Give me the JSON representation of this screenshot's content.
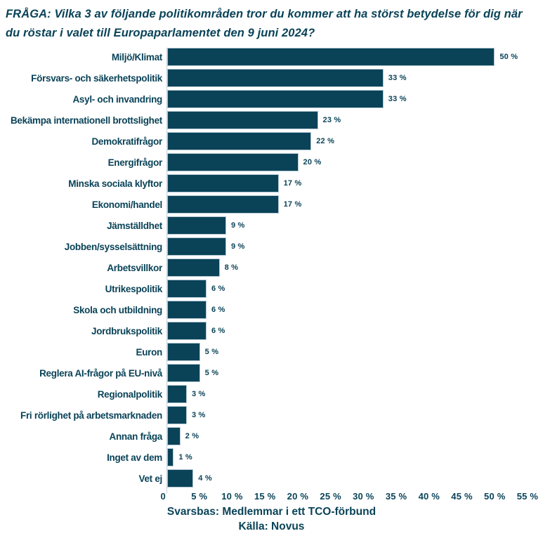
{
  "page": {
    "background": "#ffffff",
    "text_color": "#0A4358",
    "accent_color": "#0A4358",
    "bar_border_color": "#b3c8d3"
  },
  "chart_data": {
    "type": "bar",
    "orientation": "horizontal",
    "title": "FRÅGA: Vilka 3 av följande politikområden tror du kommer att ha störst betydelse för dig när du röstar i valet till Europaparlamentet den 9 juni 2024?",
    "categories": [
      "Miljö/Klimat",
      "Försvars- och säkerhetspolitik",
      "Asyl- och invandring",
      "Bekämpa internationell brottslighet",
      "Demokratifrågor",
      "Energifrågor",
      "Minska sociala klyftor",
      "Ekonomi/handel",
      "Jämställdhet",
      "Jobben/sysselsättning",
      "Arbetsvillkor",
      "Utrikespolitik",
      "Skola och utbildning",
      "Jordbrukspolitik",
      "Euron",
      "Reglera AI-frågor på EU-nivå",
      "Regionalpolitik",
      "Fri rörlighet på arbetsmarknaden",
      "Annan fråga",
      "Inget av dem",
      "Vet ej"
    ],
    "values": [
      50,
      33,
      33,
      23,
      22,
      20,
      17,
      17,
      9,
      9,
      8,
      6,
      6,
      6,
      5,
      5,
      3,
      3,
      2,
      1,
      4
    ],
    "value_suffix": " %",
    "xlabel": "",
    "ylabel": "",
    "xlim": [
      0,
      56.5
    ],
    "x_ticks": [
      {
        "value": 0,
        "label": "0"
      },
      {
        "value": 5,
        "label": "5 %"
      },
      {
        "value": 10,
        "label": "10 %"
      },
      {
        "value": 15,
        "label": "15 %"
      },
      {
        "value": 20,
        "label": "20 %"
      },
      {
        "value": 25,
        "label": "25 %"
      },
      {
        "value": 30,
        "label": "30 %"
      },
      {
        "value": 35,
        "label": "35 %"
      },
      {
        "value": 40,
        "label": "40 %"
      },
      {
        "value": 45,
        "label": "45 %"
      },
      {
        "value": 50,
        "label": "50 %"
      },
      {
        "value": 55,
        "label": "55 %"
      }
    ],
    "grid": false,
    "legend": false,
    "footnotes": [
      "Svarsbas: Medlemmar i ett TCO-förbund",
      "Källa: Novus"
    ]
  }
}
